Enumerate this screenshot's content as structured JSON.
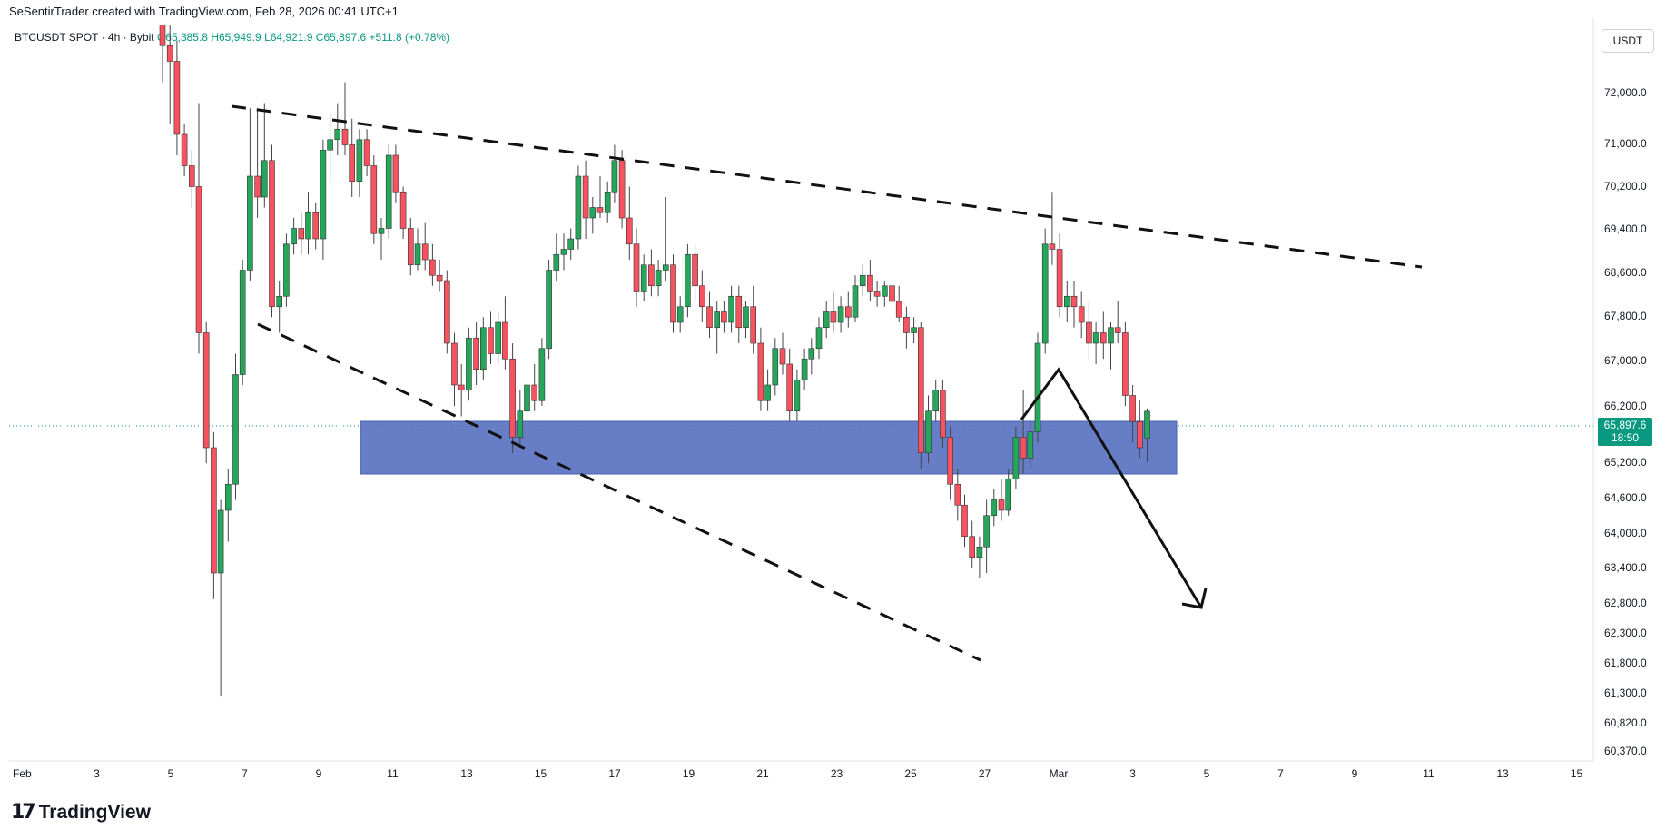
{
  "attribution": "SeSentirTrader created with TradingView.com, Feb 28, 2026 00:41 UTC+1",
  "symbol": {
    "pair": "BTCUSDT SPOT · 4h · Bybit",
    "open": "O65,385.8",
    "high": "H65,949.9",
    "low": "L64,921.9",
    "close": "C65,897.6",
    "change": "+511.8 (+0.78%)"
  },
  "currency": "USDT",
  "price_badge": {
    "price": "65,897.6",
    "countdown": "18:50"
  },
  "logo": {
    "mark": "17",
    "text": "TradingView"
  },
  "colors": {
    "up": "#089981",
    "down": "#f23645",
    "zone": "#5a72c0",
    "badge": "#089981"
  },
  "chart_data": {
    "type": "candlestick",
    "title": "",
    "y_ticks": [
      "72,000.0",
      "71,000.0",
      "70,200.0",
      "69,400.0",
      "68,600.0",
      "67,800.0",
      "67,000.0",
      "66,200.0",
      "65,200.0",
      "64,600.0",
      "64,000.0",
      "63,400.0",
      "62,800.0",
      "62,300.0",
      "61,800.0",
      "61,300.0",
      "60,820.0",
      "60,370.0"
    ],
    "x_ticks": [
      "Feb",
      "3",
      "5",
      "7",
      "9",
      "11",
      "13",
      "15",
      "17",
      "19",
      "21",
      "23",
      "25",
      "27",
      "Mar",
      "3",
      "5",
      "7",
      "9",
      "11",
      "13",
      "15"
    ],
    "ylim": [
      60200,
      73300
    ],
    "x_range_days": [
      0,
      43
    ],
    "current_price": 65897.6,
    "candles": [
      {
        "t": 4.5,
        "o": 73300,
        "h": 73300,
        "l": 72200,
        "c": 72900
      },
      {
        "t": 4.67,
        "o": 72900,
        "h": 73300,
        "l": 71400,
        "c": 72600
      },
      {
        "t": 4.83,
        "o": 72600,
        "h": 73000,
        "l": 70800,
        "c": 71200
      },
      {
        "t": 5.0,
        "o": 71200,
        "h": 71400,
        "l": 70400,
        "c": 70600
      },
      {
        "t": 5.17,
        "o": 70600,
        "h": 70900,
        "l": 69800,
        "c": 70200
      },
      {
        "t": 5.33,
        "o": 70200,
        "h": 71800,
        "l": 67000,
        "c": 67400
      },
      {
        "t": 5.5,
        "o": 67400,
        "h": 67600,
        "l": 64900,
        "c": 65200
      },
      {
        "t": 5.67,
        "o": 65200,
        "h": 65500,
        "l": 62300,
        "c": 62800
      },
      {
        "t": 5.83,
        "o": 62800,
        "h": 64200,
        "l": 60450,
        "c": 64000
      },
      {
        "t": 6.0,
        "o": 64000,
        "h": 64800,
        "l": 63400,
        "c": 64500
      },
      {
        "t": 6.17,
        "o": 64500,
        "h": 67000,
        "l": 64200,
        "c": 66600
      },
      {
        "t": 6.33,
        "o": 66600,
        "h": 68800,
        "l": 66400,
        "c": 68600
      },
      {
        "t": 6.5,
        "o": 68600,
        "h": 71700,
        "l": 68400,
        "c": 70400
      },
      {
        "t": 6.67,
        "o": 70400,
        "h": 71700,
        "l": 69600,
        "c": 70000
      },
      {
        "t": 6.83,
        "o": 70000,
        "h": 71800,
        "l": 69800,
        "c": 70700
      },
      {
        "t": 7.0,
        "o": 70700,
        "h": 71000,
        "l": 67700,
        "c": 67900
      },
      {
        "t": 7.17,
        "o": 67900,
        "h": 68400,
        "l": 67400,
        "c": 68100
      },
      {
        "t": 7.33,
        "o": 68100,
        "h": 69300,
        "l": 67900,
        "c": 69100
      },
      {
        "t": 7.5,
        "o": 69100,
        "h": 69600,
        "l": 68900,
        "c": 69400
      },
      {
        "t": 7.67,
        "o": 69400,
        "h": 69700,
        "l": 68900,
        "c": 69200
      },
      {
        "t": 7.83,
        "o": 69200,
        "h": 70100,
        "l": 68900,
        "c": 69700
      },
      {
        "t": 8.0,
        "o": 69700,
        "h": 69900,
        "l": 69000,
        "c": 69200
      },
      {
        "t": 8.17,
        "o": 69200,
        "h": 71100,
        "l": 68800,
        "c": 70900
      },
      {
        "t": 8.33,
        "o": 70900,
        "h": 71600,
        "l": 70300,
        "c": 71100
      },
      {
        "t": 8.5,
        "o": 71100,
        "h": 71800,
        "l": 70800,
        "c": 71300
      },
      {
        "t": 8.67,
        "o": 71300,
        "h": 72200,
        "l": 70800,
        "c": 71000
      },
      {
        "t": 8.83,
        "o": 71000,
        "h": 71500,
        "l": 70000,
        "c": 70300
      },
      {
        "t": 9.0,
        "o": 70300,
        "h": 71300,
        "l": 70000,
        "c": 71100
      },
      {
        "t": 9.17,
        "o": 71100,
        "h": 71300,
        "l": 70400,
        "c": 70600
      },
      {
        "t": 9.33,
        "o": 70600,
        "h": 70800,
        "l": 69100,
        "c": 69300
      },
      {
        "t": 9.5,
        "o": 69300,
        "h": 69600,
        "l": 68800,
        "c": 69400
      },
      {
        "t": 9.67,
        "o": 69400,
        "h": 71000,
        "l": 69200,
        "c": 70800
      },
      {
        "t": 9.83,
        "o": 70800,
        "h": 71000,
        "l": 69900,
        "c": 70100
      },
      {
        "t": 10.0,
        "o": 70100,
        "h": 70200,
        "l": 69200,
        "c": 69400
      },
      {
        "t": 10.17,
        "o": 69400,
        "h": 69600,
        "l": 68500,
        "c": 68700
      },
      {
        "t": 10.33,
        "o": 68700,
        "h": 69400,
        "l": 68600,
        "c": 69100
      },
      {
        "t": 10.5,
        "o": 69100,
        "h": 69500,
        "l": 68600,
        "c": 68800
      },
      {
        "t": 10.67,
        "o": 68800,
        "h": 69100,
        "l": 68300,
        "c": 68500
      },
      {
        "t": 10.83,
        "o": 68500,
        "h": 68800,
        "l": 68200,
        "c": 68400
      },
      {
        "t": 11.0,
        "o": 68400,
        "h": 68600,
        "l": 67000,
        "c": 67200
      },
      {
        "t": 11.17,
        "o": 67200,
        "h": 67400,
        "l": 66000,
        "c": 66400
      },
      {
        "t": 11.33,
        "o": 66400,
        "h": 66800,
        "l": 65800,
        "c": 66300
      },
      {
        "t": 11.5,
        "o": 66300,
        "h": 67500,
        "l": 66100,
        "c": 67300
      },
      {
        "t": 11.67,
        "o": 67300,
        "h": 67600,
        "l": 66400,
        "c": 66700
      },
      {
        "t": 11.83,
        "o": 66700,
        "h": 67700,
        "l": 66500,
        "c": 67500
      },
      {
        "t": 12.0,
        "o": 67500,
        "h": 67800,
        "l": 66800,
        "c": 67000
      },
      {
        "t": 12.17,
        "o": 67000,
        "h": 67800,
        "l": 66800,
        "c": 67600
      },
      {
        "t": 12.33,
        "o": 67600,
        "h": 68100,
        "l": 66700,
        "c": 66900
      },
      {
        "t": 12.5,
        "o": 66900,
        "h": 67200,
        "l": 65100,
        "c": 65400
      },
      {
        "t": 12.67,
        "o": 65400,
        "h": 66300,
        "l": 65200,
        "c": 65900
      },
      {
        "t": 12.83,
        "o": 65900,
        "h": 66600,
        "l": 65700,
        "c": 66400
      },
      {
        "t": 13.0,
        "o": 66400,
        "h": 66800,
        "l": 65900,
        "c": 66100
      },
      {
        "t": 13.17,
        "o": 66100,
        "h": 67300,
        "l": 66000,
        "c": 67100
      },
      {
        "t": 13.33,
        "o": 67100,
        "h": 68800,
        "l": 66900,
        "c": 68600
      },
      {
        "t": 13.5,
        "o": 68600,
        "h": 69300,
        "l": 68400,
        "c": 68900
      },
      {
        "t": 13.67,
        "o": 68900,
        "h": 69300,
        "l": 68600,
        "c": 69000
      },
      {
        "t": 13.83,
        "o": 69000,
        "h": 69400,
        "l": 68800,
        "c": 69200
      },
      {
        "t": 14.0,
        "o": 69200,
        "h": 70600,
        "l": 69000,
        "c": 70400
      },
      {
        "t": 14.17,
        "o": 70400,
        "h": 70700,
        "l": 69200,
        "c": 69600
      },
      {
        "t": 14.33,
        "o": 69600,
        "h": 70000,
        "l": 69300,
        "c": 69800
      },
      {
        "t": 14.5,
        "o": 69800,
        "h": 70400,
        "l": 69600,
        "c": 69700
      },
      {
        "t": 14.67,
        "o": 69700,
        "h": 70300,
        "l": 69500,
        "c": 70100
      },
      {
        "t": 14.83,
        "o": 70100,
        "h": 71000,
        "l": 69900,
        "c": 70700
      },
      {
        "t": 15.0,
        "o": 70700,
        "h": 70900,
        "l": 69400,
        "c": 69600
      },
      {
        "t": 15.17,
        "o": 69600,
        "h": 70200,
        "l": 68800,
        "c": 69100
      },
      {
        "t": 15.33,
        "o": 69100,
        "h": 69400,
        "l": 67900,
        "c": 68200
      },
      {
        "t": 15.5,
        "o": 68200,
        "h": 68900,
        "l": 68000,
        "c": 68700
      },
      {
        "t": 15.67,
        "o": 68700,
        "h": 69000,
        "l": 68100,
        "c": 68300
      },
      {
        "t": 15.83,
        "o": 68300,
        "h": 68800,
        "l": 68100,
        "c": 68600
      },
      {
        "t": 16.0,
        "o": 68600,
        "h": 70000,
        "l": 68400,
        "c": 68700
      },
      {
        "t": 16.17,
        "o": 68700,
        "h": 68900,
        "l": 67400,
        "c": 67600
      },
      {
        "t": 16.33,
        "o": 67600,
        "h": 68100,
        "l": 67400,
        "c": 67900
      },
      {
        "t": 16.5,
        "o": 67900,
        "h": 69100,
        "l": 67700,
        "c": 68900
      },
      {
        "t": 16.67,
        "o": 68900,
        "h": 69100,
        "l": 68000,
        "c": 68300
      },
      {
        "t": 16.83,
        "o": 68300,
        "h": 68600,
        "l": 67600,
        "c": 67900
      },
      {
        "t": 17.0,
        "o": 67900,
        "h": 68200,
        "l": 67300,
        "c": 67500
      },
      {
        "t": 17.17,
        "o": 67500,
        "h": 68000,
        "l": 67000,
        "c": 67800
      },
      {
        "t": 17.33,
        "o": 67800,
        "h": 68000,
        "l": 67400,
        "c": 67600
      },
      {
        "t": 17.5,
        "o": 67600,
        "h": 68300,
        "l": 67400,
        "c": 68100
      },
      {
        "t": 17.67,
        "o": 68100,
        "h": 68300,
        "l": 67200,
        "c": 67500
      },
      {
        "t": 17.83,
        "o": 67500,
        "h": 68000,
        "l": 67300,
        "c": 67900
      },
      {
        "t": 18.0,
        "o": 67900,
        "h": 68300,
        "l": 67000,
        "c": 67200
      },
      {
        "t": 18.17,
        "o": 67200,
        "h": 67500,
        "l": 65900,
        "c": 66100
      },
      {
        "t": 18.33,
        "o": 66100,
        "h": 66700,
        "l": 65900,
        "c": 66400
      },
      {
        "t": 18.5,
        "o": 66400,
        "h": 67300,
        "l": 66200,
        "c": 67100
      },
      {
        "t": 18.67,
        "o": 67100,
        "h": 67400,
        "l": 66600,
        "c": 66800
      },
      {
        "t": 18.83,
        "o": 66800,
        "h": 67100,
        "l": 65700,
        "c": 65900
      },
      {
        "t": 19.0,
        "o": 65900,
        "h": 66700,
        "l": 65700,
        "c": 66500
      },
      {
        "t": 19.17,
        "o": 66500,
        "h": 67100,
        "l": 66300,
        "c": 66900
      },
      {
        "t": 19.33,
        "o": 66900,
        "h": 67300,
        "l": 66600,
        "c": 67100
      },
      {
        "t": 19.5,
        "o": 67100,
        "h": 67700,
        "l": 66900,
        "c": 67500
      },
      {
        "t": 19.67,
        "o": 67500,
        "h": 68000,
        "l": 67300,
        "c": 67800
      },
      {
        "t": 19.83,
        "o": 67800,
        "h": 68200,
        "l": 67400,
        "c": 67600
      },
      {
        "t": 20.0,
        "o": 67600,
        "h": 68100,
        "l": 67400,
        "c": 67900
      },
      {
        "t": 20.17,
        "o": 67900,
        "h": 68200,
        "l": 67500,
        "c": 67700
      },
      {
        "t": 20.33,
        "o": 67700,
        "h": 68500,
        "l": 67600,
        "c": 68300
      },
      {
        "t": 20.5,
        "o": 68300,
        "h": 68700,
        "l": 68100,
        "c": 68500
      },
      {
        "t": 20.67,
        "o": 68500,
        "h": 68800,
        "l": 68000,
        "c": 68200
      },
      {
        "t": 20.83,
        "o": 68200,
        "h": 68400,
        "l": 67900,
        "c": 68100
      },
      {
        "t": 21.0,
        "o": 68100,
        "h": 68400,
        "l": 67900,
        "c": 68300
      },
      {
        "t": 21.17,
        "o": 68300,
        "h": 68500,
        "l": 67900,
        "c": 68000
      },
      {
        "t": 21.33,
        "o": 68000,
        "h": 68300,
        "l": 67600,
        "c": 67700
      },
      {
        "t": 21.5,
        "o": 67700,
        "h": 67900,
        "l": 67100,
        "c": 67400
      },
      {
        "t": 21.67,
        "o": 67400,
        "h": 67700,
        "l": 67200,
        "c": 67500
      },
      {
        "t": 21.83,
        "o": 67500,
        "h": 67600,
        "l": 64800,
        "c": 65100
      },
      {
        "t": 22.0,
        "o": 65100,
        "h": 66200,
        "l": 64900,
        "c": 65900
      },
      {
        "t": 22.17,
        "o": 65900,
        "h": 66500,
        "l": 65700,
        "c": 66300
      },
      {
        "t": 22.33,
        "o": 66300,
        "h": 66500,
        "l": 65200,
        "c": 65400
      },
      {
        "t": 22.5,
        "o": 65400,
        "h": 65600,
        "l": 64200,
        "c": 64500
      },
      {
        "t": 22.67,
        "o": 64500,
        "h": 64800,
        "l": 63800,
        "c": 64100
      },
      {
        "t": 22.83,
        "o": 64100,
        "h": 64300,
        "l": 63300,
        "c": 63500
      },
      {
        "t": 23.0,
        "o": 63500,
        "h": 63800,
        "l": 62900,
        "c": 63100
      },
      {
        "t": 23.17,
        "o": 63100,
        "h": 63500,
        "l": 62700,
        "c": 63300
      },
      {
        "t": 23.33,
        "o": 63300,
        "h": 64200,
        "l": 62800,
        "c": 63900
      },
      {
        "t": 23.5,
        "o": 63900,
        "h": 64400,
        "l": 63700,
        "c": 64200
      },
      {
        "t": 23.67,
        "o": 64200,
        "h": 64600,
        "l": 63800,
        "c": 64000
      },
      {
        "t": 23.83,
        "o": 64000,
        "h": 64800,
        "l": 63900,
        "c": 64600
      },
      {
        "t": 24.0,
        "o": 64600,
        "h": 65600,
        "l": 64400,
        "c": 65400
      },
      {
        "t": 24.17,
        "o": 65400,
        "h": 66300,
        "l": 64700,
        "c": 65000
      },
      {
        "t": 24.33,
        "o": 65000,
        "h": 65700,
        "l": 64800,
        "c": 65500
      },
      {
        "t": 24.5,
        "o": 65500,
        "h": 67400,
        "l": 65300,
        "c": 67200
      },
      {
        "t": 24.67,
        "o": 67200,
        "h": 69400,
        "l": 67000,
        "c": 69100
      },
      {
        "t": 24.83,
        "o": 69100,
        "h": 70100,
        "l": 68700,
        "c": 69000
      },
      {
        "t": 25.0,
        "o": 69000,
        "h": 69300,
        "l": 67700,
        "c": 67900
      },
      {
        "t": 25.17,
        "o": 67900,
        "h": 68400,
        "l": 67600,
        "c": 68100
      },
      {
        "t": 25.33,
        "o": 68100,
        "h": 68400,
        "l": 67500,
        "c": 67900
      },
      {
        "t": 25.5,
        "o": 67900,
        "h": 68200,
        "l": 67300,
        "c": 67600
      },
      {
        "t": 25.67,
        "o": 67600,
        "h": 68000,
        "l": 66900,
        "c": 67200
      },
      {
        "t": 25.83,
        "o": 67200,
        "h": 67600,
        "l": 66800,
        "c": 67400
      },
      {
        "t": 26.0,
        "o": 67400,
        "h": 67800,
        "l": 66900,
        "c": 67200
      },
      {
        "t": 26.17,
        "o": 67200,
        "h": 67600,
        "l": 66700,
        "c": 67500
      },
      {
        "t": 26.33,
        "o": 67500,
        "h": 68000,
        "l": 67200,
        "c": 67400
      },
      {
        "t": 26.5,
        "o": 67400,
        "h": 67600,
        "l": 66000,
        "c": 66200
      },
      {
        "t": 26.67,
        "o": 66200,
        "h": 66400,
        "l": 65300,
        "c": 65700
      },
      {
        "t": 26.83,
        "o": 65700,
        "h": 66100,
        "l": 65000,
        "c": 65200
      },
      {
        "t": 27.0,
        "o": 65385.8,
        "h": 65949.9,
        "l": 64921.9,
        "c": 65897.6
      }
    ],
    "annotations": {
      "upper_trendline": [
        {
          "t": 6.67,
          "p": 71750
        },
        {
          "t": 35.0,
          "p": 68700
        }
      ],
      "lower_trendline": [
        {
          "t": 6.5,
          "p": 67700
        },
        {
          "t": 26.5,
          "p": 62150
        }
      ],
      "zone": {
        "t0": 8.67,
        "t1": 31.0,
        "p0": 65000,
        "p1": 66000
      },
      "projection": [
        {
          "t": 27.17,
          "p": 66000
        },
        {
          "t": 28.33,
          "p": 66850
        },
        {
          "t": 32.5,
          "p": 62850
        }
      ],
      "arrow_head": {
        "t": 32.5,
        "p": 62850
      }
    }
  }
}
